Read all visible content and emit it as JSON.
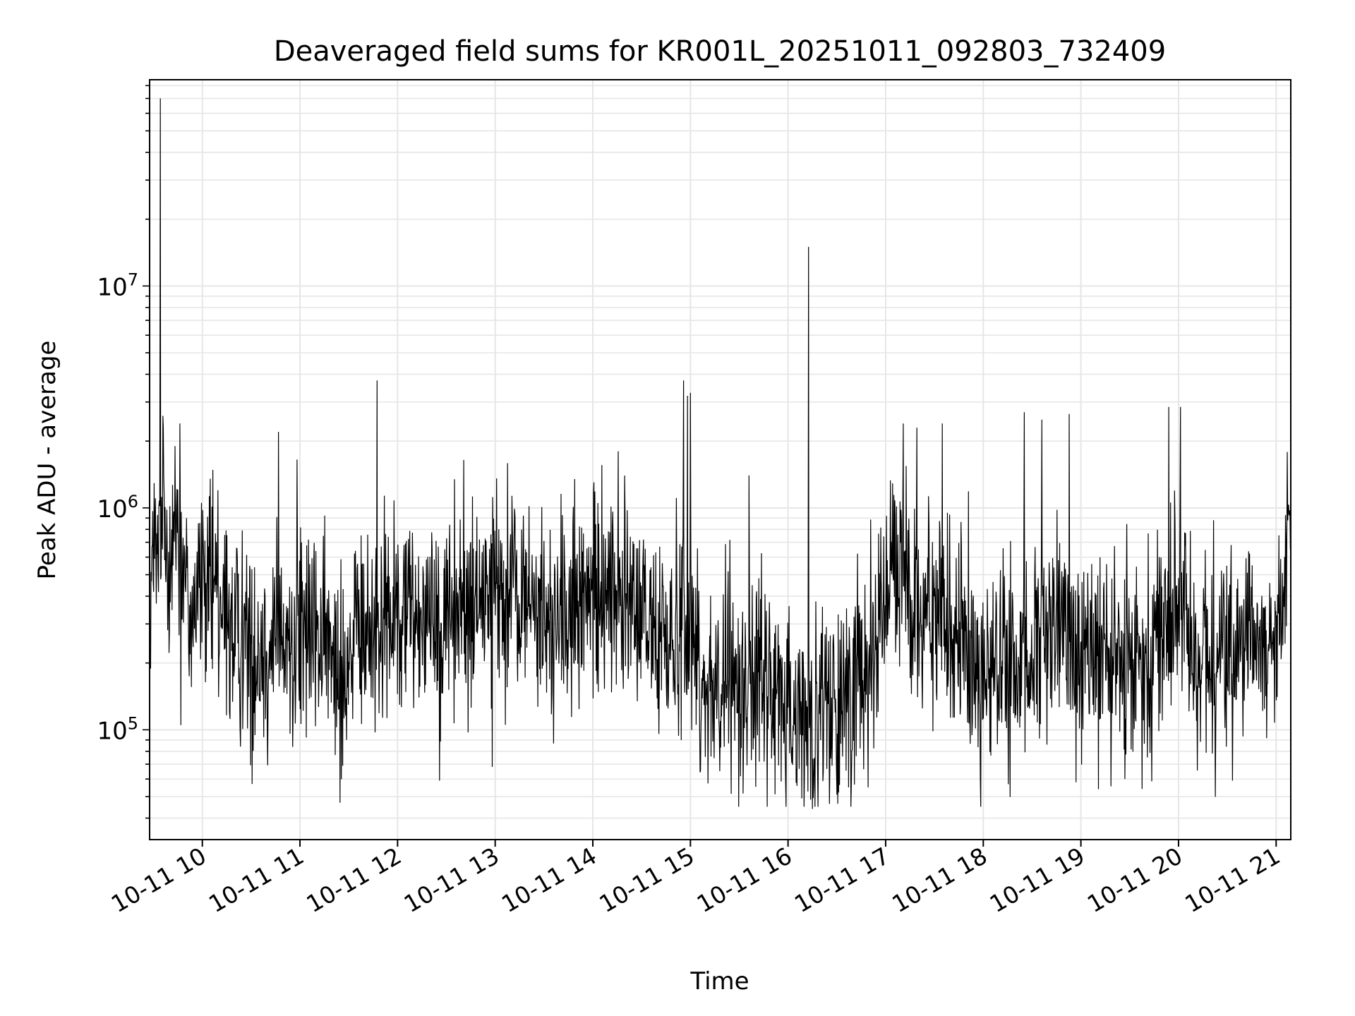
{
  "chart_data": {
    "type": "line",
    "title": "Deaveraged field sums for KR001L_20251011_092803_732409",
    "xlabel": "Time",
    "ylabel": "Peak ADU - average",
    "yscale": "log",
    "grid": true,
    "line_color": "#000000",
    "x_unit": "hour of day (2025-10-11)",
    "xlim": [
      9.46,
      21.15
    ],
    "ylim": [
      32000,
      85000000
    ],
    "x_ticks": [
      {
        "value": 10,
        "label": "10-11 10"
      },
      {
        "value": 11,
        "label": "10-11 11"
      },
      {
        "value": 12,
        "label": "10-11 12"
      },
      {
        "value": 13,
        "label": "10-11 13"
      },
      {
        "value": 14,
        "label": "10-11 14"
      },
      {
        "value": 15,
        "label": "10-11 15"
      },
      {
        "value": 16,
        "label": "10-11 16"
      },
      {
        "value": 17,
        "label": "10-11 17"
      },
      {
        "value": 18,
        "label": "10-11 18"
      },
      {
        "value": 19,
        "label": "10-11 19"
      },
      {
        "value": 20,
        "label": "10-11 20"
      },
      {
        "value": 21,
        "label": "10-11 21"
      }
    ],
    "y_ticks": [
      {
        "value": 100000,
        "base": "10",
        "exp": "5"
      },
      {
        "value": 1000000,
        "base": "10",
        "exp": "6"
      },
      {
        "value": 10000000,
        "base": "10",
        "exp": "7"
      }
    ],
    "baseline": {
      "x": [
        9.47,
        9.6,
        9.75,
        9.85,
        10.0,
        10.3,
        10.6,
        10.9,
        11.1,
        11.4,
        11.8,
        12.1,
        12.4,
        12.7,
        13.0,
        13.3,
        13.6,
        13.9,
        14.1,
        14.4,
        14.7,
        14.95,
        15.1,
        15.4,
        15.7,
        15.9,
        16.1,
        16.3,
        16.5,
        16.75,
        16.9,
        17.1,
        17.4,
        17.7,
        18.0,
        18.3,
        18.6,
        18.9,
        19.2,
        19.5,
        19.7,
        19.95,
        20.2,
        20.5,
        20.8,
        21.0,
        21.1,
        21.15
      ],
      "y": [
        500000,
        650000,
        900000,
        350000,
        450000,
        280000,
        230000,
        230000,
        280000,
        200000,
        300000,
        350000,
        350000,
        350000,
        420000,
        380000,
        300000,
        330000,
        450000,
        350000,
        260000,
        320000,
        170000,
        150000,
        180000,
        130000,
        110000,
        110000,
        120000,
        200000,
        300000,
        550000,
        350000,
        270000,
        180000,
        180000,
        230000,
        300000,
        200000,
        180000,
        250000,
        350000,
        220000,
        220000,
        230000,
        260000,
        700000,
        1200000
      ]
    },
    "spikes": [
      {
        "x": 9.57,
        "y": 70000000
      },
      {
        "x": 9.6,
        "y": 2300000
      },
      {
        "x": 9.72,
        "y": 1900000
      },
      {
        "x": 9.77,
        "y": 2400000
      },
      {
        "x": 9.78,
        "y": 105000
      },
      {
        "x": 10.16,
        "y": 1200000
      },
      {
        "x": 10.78,
        "y": 2200000
      },
      {
        "x": 10.97,
        "y": 1650000
      },
      {
        "x": 10.51,
        "y": 57000
      },
      {
        "x": 11.79,
        "y": 3750000
      },
      {
        "x": 12.43,
        "y": 59000
      },
      {
        "x": 12.97,
        "y": 68000
      },
      {
        "x": 14.26,
        "y": 1800000
      },
      {
        "x": 14.93,
        "y": 3750000
      },
      {
        "x": 14.97,
        "y": 3200000
      },
      {
        "x": 15.0,
        "y": 3300000
      },
      {
        "x": 15.6,
        "y": 1400000
      },
      {
        "x": 16.21,
        "y": 15000000
      },
      {
        "x": 16.25,
        "y": 44000
      },
      {
        "x": 16.62,
        "y": 55000
      },
      {
        "x": 16.82,
        "y": 55000
      },
      {
        "x": 17.18,
        "y": 2400000
      },
      {
        "x": 17.32,
        "y": 2300000
      },
      {
        "x": 17.58,
        "y": 2400000
      },
      {
        "x": 18.42,
        "y": 2700000
      },
      {
        "x": 18.6,
        "y": 2500000
      },
      {
        "x": 18.88,
        "y": 2650000
      },
      {
        "x": 18.95,
        "y": 58000
      },
      {
        "x": 19.18,
        "y": 54000
      },
      {
        "x": 19.45,
        "y": 60000
      },
      {
        "x": 19.9,
        "y": 2850000
      },
      {
        "x": 20.02,
        "y": 2850000
      }
    ]
  }
}
